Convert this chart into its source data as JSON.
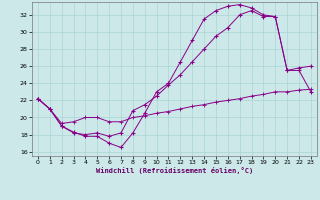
{
  "xlabel": "Windchill (Refroidissement éolien,°C)",
  "background_color": "#cce8e8",
  "line_color": "#880088",
  "xlim": [
    -0.5,
    23.5
  ],
  "ylim": [
    15.5,
    33.5
  ],
  "yticks": [
    16,
    18,
    20,
    22,
    24,
    26,
    28,
    30,
    32
  ],
  "xticks": [
    0,
    1,
    2,
    3,
    4,
    5,
    6,
    7,
    8,
    9,
    10,
    11,
    12,
    13,
    14,
    15,
    16,
    17,
    18,
    19,
    20,
    21,
    22,
    23
  ],
  "line1_x": [
    0,
    1,
    2,
    3,
    4,
    5,
    6,
    7,
    8,
    9,
    10,
    11,
    12,
    13,
    14,
    15,
    16,
    17,
    18,
    19,
    20,
    21,
    22,
    23
  ],
  "line1_y": [
    22.2,
    21.0,
    19.0,
    18.3,
    17.8,
    17.8,
    17.0,
    16.5,
    18.2,
    20.5,
    23.0,
    24.0,
    26.5,
    29.0,
    31.5,
    32.5,
    33.0,
    33.2,
    32.8,
    32.0,
    31.8,
    25.5,
    25.8,
    26.0
  ],
  "line2_x": [
    0,
    1,
    2,
    3,
    4,
    5,
    6,
    7,
    8,
    9,
    10,
    11,
    12,
    13,
    14,
    15,
    16,
    17,
    18,
    19,
    20,
    21,
    22,
    23
  ],
  "line2_y": [
    22.2,
    21.0,
    19.0,
    18.2,
    18.0,
    18.2,
    17.8,
    18.2,
    20.8,
    21.5,
    22.5,
    23.8,
    25.0,
    26.5,
    28.0,
    29.5,
    30.5,
    32.0,
    32.5,
    31.8,
    31.8,
    25.5,
    25.5,
    23.0
  ],
  "line3_x": [
    0,
    1,
    2,
    3,
    4,
    5,
    6,
    7,
    8,
    9,
    10,
    11,
    12,
    13,
    14,
    15,
    16,
    17,
    18,
    19,
    20,
    21,
    22,
    23
  ],
  "line3_y": [
    22.2,
    21.0,
    19.3,
    19.5,
    20.0,
    20.0,
    19.5,
    19.5,
    20.0,
    20.2,
    20.5,
    20.7,
    21.0,
    21.3,
    21.5,
    21.8,
    22.0,
    22.2,
    22.5,
    22.7,
    23.0,
    23.0,
    23.2,
    23.3
  ]
}
